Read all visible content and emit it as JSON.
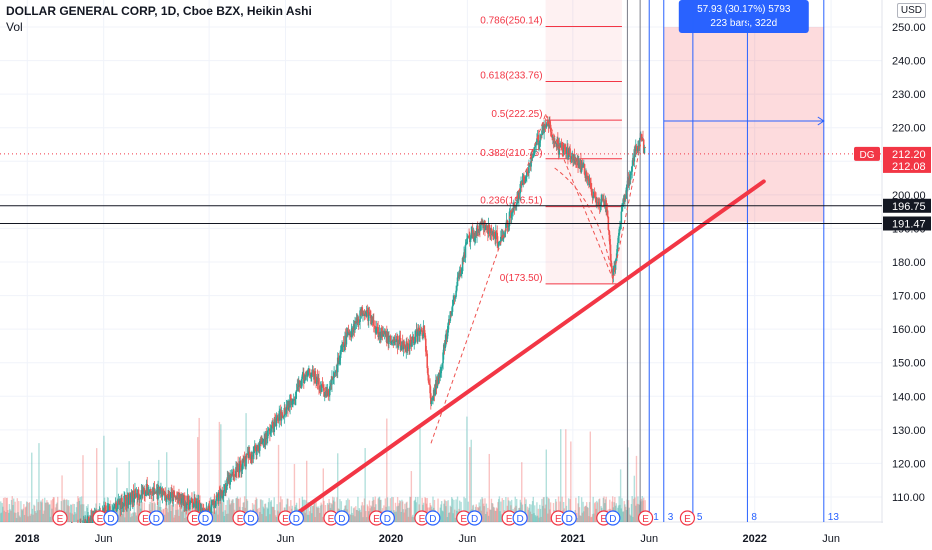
{
  "header": {
    "symbol_line": "DOLLAR GENERAL CORP, 1D, Cboe BZX, Heikin Ashi",
    "volume_label": "Vol",
    "currency_button": "USD"
  },
  "chart_data": {
    "type": "candlestick",
    "price_axis": {
      "ylim": [
        100,
        260
      ],
      "ticks": [
        "250.00",
        "240.00",
        "230.00",
        "220.00",
        "210.00",
        "200.00",
        "190.00",
        "180.00",
        "170.00",
        "160.00",
        "150.00",
        "140.00",
        "130.00",
        "120.00",
        "110.00"
      ]
    },
    "time_axis": {
      "labels": [
        {
          "text": "2018",
          "t": 2018.0
        },
        {
          "text": "Jun",
          "t": 2018.42
        },
        {
          "text": "2019",
          "t": 2019.0
        },
        {
          "text": "Jun",
          "t": 2019.42
        },
        {
          "text": "2020",
          "t": 2020.0
        },
        {
          "text": "Jun",
          "t": 2020.42
        },
        {
          "text": "2021",
          "t": 2021.0
        },
        {
          "text": "Jun",
          "t": 2021.42
        },
        {
          "text": "2022",
          "t": 2022.0
        },
        {
          "text": "Jun",
          "t": 2022.42
        }
      ],
      "xlim": [
        2017.85,
        2022.7
      ]
    },
    "price_path": [
      [
        2017.85,
        94
      ],
      [
        2018.1,
        96
      ],
      [
        2018.3,
        101
      ],
      [
        2018.5,
        108
      ],
      [
        2018.65,
        112
      ],
      [
        2018.8,
        110
      ],
      [
        2019.0,
        106
      ],
      [
        2019.15,
        118
      ],
      [
        2019.3,
        127
      ],
      [
        2019.45,
        139
      ],
      [
        2019.55,
        148
      ],
      [
        2019.65,
        140
      ],
      [
        2019.75,
        157
      ],
      [
        2019.85,
        166
      ],
      [
        2019.95,
        158
      ],
      [
        2020.08,
        155
      ],
      [
        2020.18,
        160
      ],
      [
        2020.22,
        137
      ],
      [
        2020.27,
        148
      ],
      [
        2020.35,
        170
      ],
      [
        2020.42,
        186
      ],
      [
        2020.5,
        191
      ],
      [
        2020.6,
        186
      ],
      [
        2020.7,
        200
      ],
      [
        2020.8,
        215
      ],
      [
        2020.85,
        222
      ],
      [
        2020.92,
        214
      ],
      [
        2021.0,
        212
      ],
      [
        2021.08,
        206
      ],
      [
        2021.13,
        196
      ],
      [
        2021.18,
        198
      ],
      [
        2021.22,
        175
      ],
      [
        2021.27,
        196
      ],
      [
        2021.33,
        210
      ],
      [
        2021.37,
        218
      ],
      [
        2021.4,
        212
      ]
    ],
    "last_price_tag": {
      "label": "DG",
      "price": "212.20",
      "sub": "212.08",
      "value": 212.2
    },
    "horizontal_levels": [
      {
        "label": "196.75",
        "value": 196.75
      },
      {
        "label": "191.47",
        "value": 191.47
      }
    ],
    "fib_retracement": {
      "levels": [
        {
          "label": "0.786(250.14)",
          "value": 250.14
        },
        {
          "label": "0.618(233.76)",
          "value": 233.76
        },
        {
          "label": "0.5(222.25)",
          "value": 222.25
        },
        {
          "label": "0.382(210.75)",
          "value": 210.75
        },
        {
          "label": "0.236(196.51)",
          "value": 196.51
        },
        {
          "label": "0(173.50)",
          "value": 173.5
        }
      ],
      "t_start": 2020.85,
      "t_end": 2021.27
    },
    "trendline": {
      "points": [
        [
          2019.35,
          100
        ],
        [
          2022.05,
          204
        ]
      ],
      "color": "#f23645"
    },
    "zigzag": [
      [
        2020.22,
        126
      ],
      [
        2020.85,
        224
      ],
      [
        2021.22,
        175
      ],
      [
        2021.38,
        217
      ]
    ],
    "measure_box": {
      "label_line1": "57.93 (30.17%) 5793",
      "label_line2": "223 bars, 322d",
      "t_start": 2021.5,
      "t_end": 2022.38,
      "p_low": 192,
      "p_high": 250
    },
    "fib_time_lines": {
      "labels": [
        "1",
        "3",
        "5",
        "8",
        "13"
      ],
      "t_values": [
        2021.42,
        2021.5,
        2021.66,
        2021.96,
        2022.38
      ],
      "extra_t": [
        2021.3,
        2021.37
      ]
    },
    "earnings_markers": [
      {
        "text": "E",
        "t": 2018.18
      },
      {
        "text": "E",
        "t": 2018.4
      },
      {
        "text": "D",
        "t": 2018.46
      },
      {
        "text": "E",
        "t": 2018.65
      },
      {
        "text": "D",
        "t": 2018.71
      },
      {
        "text": "E",
        "t": 2018.92
      },
      {
        "text": "D",
        "t": 2018.98
      },
      {
        "text": "E",
        "t": 2019.17
      },
      {
        "text": "D",
        "t": 2019.23
      },
      {
        "text": "E",
        "t": 2019.42
      },
      {
        "text": "D",
        "t": 2019.48
      },
      {
        "text": "E",
        "t": 2019.67
      },
      {
        "text": "D",
        "t": 2019.73
      },
      {
        "text": "E",
        "t": 2019.92
      },
      {
        "text": "D",
        "t": 2019.98
      },
      {
        "text": "E",
        "t": 2020.17
      },
      {
        "text": "D",
        "t": 2020.23
      },
      {
        "text": "E",
        "t": 2020.4
      },
      {
        "text": "D",
        "t": 2020.46
      },
      {
        "text": "E",
        "t": 2020.65
      },
      {
        "text": "D",
        "t": 2020.71
      },
      {
        "text": "E",
        "t": 2020.92
      },
      {
        "text": "D",
        "t": 2020.98
      },
      {
        "text": "E",
        "t": 2021.17
      },
      {
        "text": "D",
        "t": 2021.22
      },
      {
        "text": "E",
        "t": 2021.4
      },
      {
        "text": "E",
        "t": 2021.63
      }
    ],
    "colors": {
      "up": "#26a69a",
      "down": "#ef5350",
      "fib": "#f23645",
      "measure": "#2962ff",
      "fill": "rgba(242,54,69,0.18)",
      "level": "#131722"
    }
  }
}
